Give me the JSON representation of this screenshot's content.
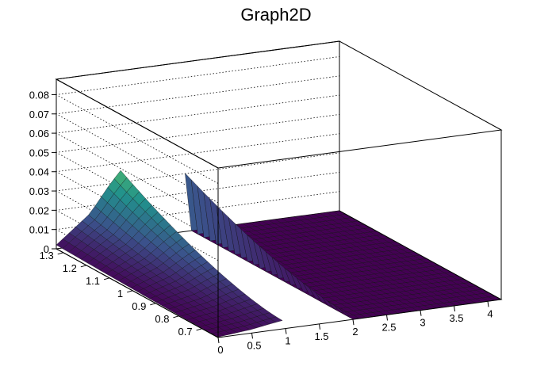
{
  "chart_data": {
    "type": "surface3d",
    "title": "Graph2D",
    "xlabel": "",
    "ylabel": "",
    "zlabel": "",
    "x_ticks": [
      "0",
      "0.5",
      "1",
      "1.5",
      "2",
      "2.5",
      "3",
      "3.5",
      "4"
    ],
    "y_ticks": [
      "0.7",
      "0.8",
      "0.9",
      "1",
      "1.1",
      "1.2",
      "1.3"
    ],
    "z_ticks": [
      "0",
      "0.01",
      "0.02",
      "0.03",
      "0.04",
      "0.05",
      "0.06",
      "0.07",
      "0.08"
    ],
    "xlim": [
      0,
      4.2
    ],
    "ylim": [
      0.63,
      1.33
    ],
    "zlim": [
      0,
      0.088
    ],
    "grid": true,
    "palette": "viridis",
    "surface_description_values": {
      "x": [
        0.0,
        0.5,
        0.8,
        1.1,
        1.4,
        1.7,
        1.85,
        2.0,
        4.2
      ],
      "z_peak_by_x": [
        0.002,
        0.016,
        0.03,
        0.042,
        0.05,
        0.052,
        0.05,
        0.0,
        0.0
      ],
      "hole": {
        "x": [
          1.0,
          1.95
        ],
        "y": [
          0.63,
          1.33
        ]
      }
    }
  }
}
